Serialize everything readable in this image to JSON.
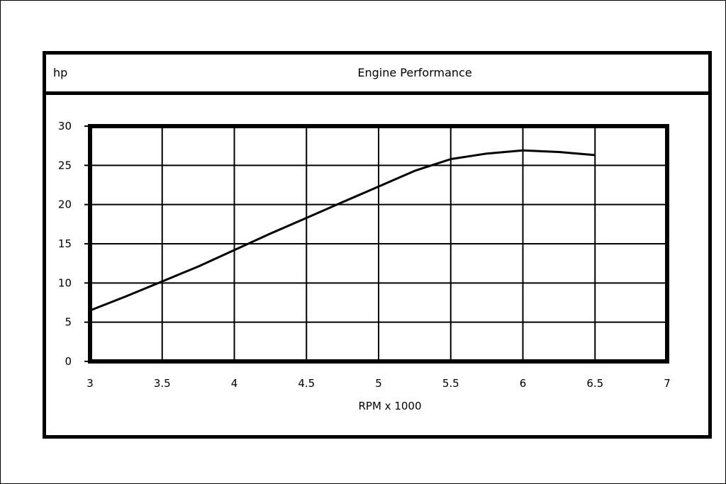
{
  "chart_data": {
    "type": "line",
    "title": "Engine Performance",
    "ylabel": "hp",
    "xlabel": "RPM x 1000",
    "xlim": [
      3,
      7
    ],
    "ylim": [
      0,
      30
    ],
    "x_ticks": [
      "3",
      "3.5",
      "4",
      "4.5",
      "5",
      "5.5",
      "6",
      "6.5",
      "7"
    ],
    "y_ticks": [
      "0",
      "5",
      "10",
      "15",
      "20",
      "25",
      "30"
    ],
    "grid": true,
    "legend": "none",
    "series": [
      {
        "color": "#000000",
        "x": [
          3,
          3.25,
          3.5,
          3.75,
          4,
          4.25,
          4.5,
          4.75,
          5,
          5.25,
          5.5,
          5.75,
          6,
          6.25,
          6.5
        ],
        "y": [
          6.5,
          8.3,
          10.2,
          12.1,
          14.2,
          16.3,
          18.3,
          20.3,
          22.3,
          24.3,
          25.8,
          26.5,
          26.9,
          26.7,
          26.3
        ]
      }
    ]
  }
}
